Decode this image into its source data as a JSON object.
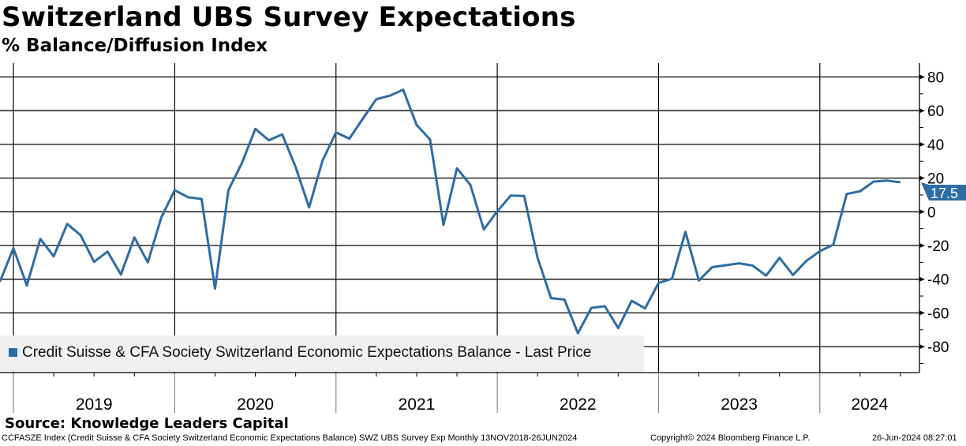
{
  "header": {
    "title": "Switzerland UBS Survey Expectations",
    "subtitle": "% Balance/Diffusion Index"
  },
  "footer": {
    "source": "Source: Knowledge Leaders Capital",
    "description": "CCFASZE Index (Credit Suisse & CFA Society Switzerland Economic Expectations Balance) SWZ UBS Survey Exp  Monthly 13NOV2018-26JUN2024",
    "copyright": "Copyright© 2024 Bloomberg Finance L.P.",
    "timestamp": "26-Jun-2024 08:27:01"
  },
  "colors": {
    "series": "#2e6ca4",
    "legend_bg": "#f0f0f0"
  },
  "chart_data": {
    "type": "line",
    "title": "Switzerland UBS Survey Expectations",
    "subtitle": "% Balance/Diffusion Index",
    "ylim": [
      -95,
      85
    ],
    "yticks": [
      "80",
      "60",
      "40",
      "20",
      "0",
      "-20",
      "-40",
      "-60",
      "-80"
    ],
    "ytick_values": [
      80,
      60,
      40,
      20,
      0,
      -20,
      -40,
      -60,
      -80
    ],
    "xtick_labels": [
      "2019",
      "2020",
      "2021",
      "2022",
      "2023",
      "2024"
    ],
    "grid": true,
    "legend": {
      "label": "Credit Suisse & CFA Society Switzerland Economic Expectations Balance - Last Price",
      "placement": "bottom-left"
    },
    "last_value_label": "17.5",
    "series": [
      {
        "name": "Credit Suisse & CFA Society Switzerland Economic Expectations Balance - Last Price",
        "start": "2018-12",
        "frequency": "monthly",
        "values": [
          -41.4,
          -21.6,
          -43.7,
          -16.1,
          -26.4,
          -7.2,
          -13.9,
          -29.7,
          -23.6,
          -37.2,
          -15.2,
          -30.0,
          -3.4,
          12.8,
          8.6,
          7.6,
          -45.6,
          12.9,
          28.9,
          49.2,
          42.4,
          45.9,
          26.5,
          2.6,
          30.4,
          47.1,
          43.4,
          55.3,
          66.8,
          68.9,
          72.4,
          51.5,
          42.9,
          -7.8,
          25.8,
          15.9,
          -10.5,
          0.3,
          9.6,
          9.4,
          -27.3,
          -51.2,
          -52.1,
          -72.1,
          -57.0,
          -56.0,
          -69.0,
          -52.8,
          -57.3,
          -42.2,
          -39.7,
          -11.9,
          -40.8,
          -32.8,
          -31.7,
          -30.6,
          -31.9,
          -37.9,
          -27.3,
          -37.5,
          -29.1,
          -23.4,
          -19.5,
          10.6,
          12.2,
          17.9,
          18.5,
          17.5
        ]
      }
    ]
  }
}
